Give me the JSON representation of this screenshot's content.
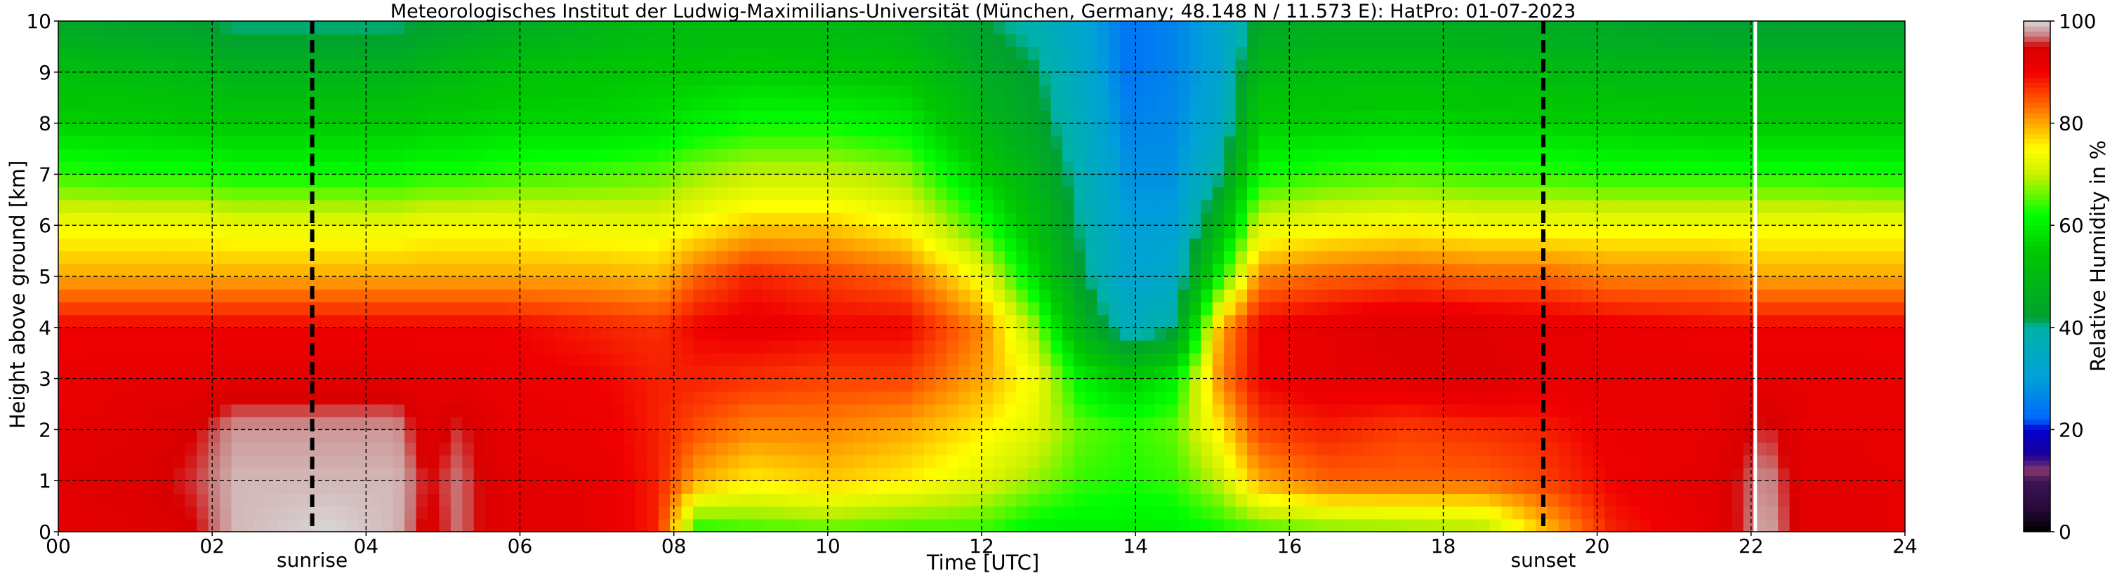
{
  "chart_data": {
    "type": "heatmap",
    "title": "Meteorologisches Institut der Ludwig-Maximilians-Universität (München, Germany; 48.148 N / 11.573 E):    HatPro: 01-07-2023",
    "xlabel": "Time [UTC]",
    "ylabel": "Height above ground [km]",
    "colorbar_label": "Relative Humidity in %",
    "xlim": [
      0,
      24
    ],
    "ylim": [
      0,
      10
    ],
    "clim": [
      0,
      100
    ],
    "x_ticks": [
      "00",
      "02",
      "04",
      "06",
      "08",
      "10",
      "12",
      "14",
      "16",
      "18",
      "20",
      "22",
      "24"
    ],
    "y_ticks": [
      "0",
      "1",
      "2",
      "3",
      "4",
      "5",
      "6",
      "7",
      "8",
      "9",
      "10"
    ],
    "colorbar_ticks": [
      "0",
      "20",
      "40",
      "60",
      "80",
      "100"
    ],
    "grid": true,
    "markers": [
      {
        "label": "sunrise",
        "x": 3.3
      },
      {
        "label": "sunset",
        "x": 19.3
      }
    ],
    "data_gaps": [
      22.05
    ],
    "colormap": [
      {
        "value": 0,
        "color": "#000000"
      },
      {
        "value": 5,
        "color": "#2a0a3a"
      },
      {
        "value": 10,
        "color": "#3d1458"
      },
      {
        "value": 12,
        "color": "#8a3a6a"
      },
      {
        "value": 15,
        "color": "#1a0099"
      },
      {
        "value": 20,
        "color": "#0000cc"
      },
      {
        "value": 22,
        "color": "#0066ff"
      },
      {
        "value": 30,
        "color": "#00a0d8"
      },
      {
        "value": 40,
        "color": "#00b2a8"
      },
      {
        "value": 42,
        "color": "#00a030"
      },
      {
        "value": 55,
        "color": "#00c800"
      },
      {
        "value": 62,
        "color": "#00ff00"
      },
      {
        "value": 70,
        "color": "#c8f000"
      },
      {
        "value": 75,
        "color": "#ffff00"
      },
      {
        "value": 80,
        "color": "#ffa800"
      },
      {
        "value": 85,
        "color": "#ff5000"
      },
      {
        "value": 90,
        "color": "#f00000"
      },
      {
        "value": 95,
        "color": "#d80000"
      },
      {
        "value": 97,
        "color": "#c87878"
      },
      {
        "value": 100,
        "color": "#d8d8d8"
      }
    ],
    "rh_profiles": [
      {
        "time": 0.0,
        "rh": [
          92,
          93,
          92,
          91,
          90,
          80,
          74,
          64,
          56,
          52,
          44
        ]
      },
      {
        "time": 1.0,
        "rh": [
          93,
          94,
          93,
          92,
          90,
          80,
          74,
          63,
          56,
          51,
          43
        ]
      },
      {
        "time": 1.8,
        "rh": [
          95,
          96,
          95,
          92,
          90,
          80,
          74,
          63,
          55,
          50,
          42
        ]
      },
      {
        "time": 2.3,
        "rh": [
          99,
          99,
          98,
          93,
          90,
          80,
          73,
          62,
          55,
          48,
          40
        ]
      },
      {
        "time": 3.5,
        "rh": [
          100,
          99,
          98,
          93,
          90,
          80,
          73,
          62,
          55,
          48,
          40
        ]
      },
      {
        "time": 4.4,
        "rh": [
          99,
          99,
          98,
          93,
          90,
          80,
          73,
          62,
          55,
          48,
          40
        ]
      },
      {
        "time": 4.8,
        "rh": [
          94,
          95,
          93,
          92,
          90,
          80,
          74,
          63,
          56,
          50,
          42
        ]
      },
      {
        "time": 5.2,
        "rh": [
          97,
          97,
          96,
          92,
          90,
          80,
          74,
          63,
          56,
          51,
          43
        ]
      },
      {
        "time": 5.8,
        "rh": [
          93,
          93,
          92,
          91,
          90,
          80,
          74,
          64,
          57,
          53,
          45
        ]
      },
      {
        "time": 7.0,
        "rh": [
          92,
          92,
          91,
          90,
          88,
          80,
          73,
          65,
          57,
          54,
          48
        ]
      },
      {
        "time": 7.8,
        "rh": [
          88,
          88,
          88,
          88,
          87,
          79,
          73,
          66,
          58,
          55,
          50
        ]
      },
      {
        "time": 8.3,
        "rh": [
          62,
          80,
          85,
          88,
          90,
          84,
          75,
          68,
          60,
          55,
          50
        ]
      },
      {
        "time": 9.0,
        "rh": [
          64,
          76,
          82,
          87,
          91,
          88,
          78,
          70,
          62,
          56,
          50
        ]
      },
      {
        "time": 10.0,
        "rh": [
          65,
          78,
          82,
          86,
          90,
          86,
          78,
          70,
          62,
          55,
          50
        ]
      },
      {
        "time": 11.0,
        "rh": [
          64,
          76,
          80,
          86,
          90,
          84,
          75,
          68,
          60,
          54,
          48
        ]
      },
      {
        "time": 12.0,
        "rh": [
          64,
          72,
          76,
          80,
          82,
          74,
          64,
          56,
          50,
          46,
          42
        ]
      },
      {
        "time": 12.7,
        "rh": [
          60,
          68,
          72,
          74,
          68,
          58,
          52,
          48,
          44,
          42,
          38
        ]
      },
      {
        "time": 13.3,
        "rh": [
          60,
          64,
          66,
          60,
          48,
          42,
          40,
          38,
          36,
          34,
          32
        ]
      },
      {
        "time": 13.9,
        "rh": [
          60,
          63,
          64,
          55,
          36,
          32,
          30,
          28,
          26,
          24,
          24
        ]
      },
      {
        "time": 14.5,
        "rh": [
          60,
          64,
          66,
          60,
          40,
          34,
          30,
          28,
          27,
          26,
          26
        ]
      },
      {
        "time": 15.1,
        "rh": [
          62,
          70,
          76,
          82,
          80,
          62,
          50,
          40,
          34,
          32,
          32
        ]
      },
      {
        "time": 15.6,
        "rh": [
          64,
          80,
          86,
          90,
          90,
          82,
          72,
          62,
          56,
          50,
          44
        ]
      },
      {
        "time": 16.5,
        "rh": [
          66,
          84,
          88,
          92,
          92,
          84,
          74,
          64,
          56,
          52,
          46
        ]
      },
      {
        "time": 17.5,
        "rh": [
          67,
          84,
          86,
          93,
          94,
          85,
          75,
          65,
          57,
          52,
          46
        ]
      },
      {
        "time": 18.5,
        "rh": [
          68,
          84,
          87,
          94,
          93,
          84,
          74,
          64,
          56,
          52,
          46
        ]
      },
      {
        "time": 19.3,
        "rh": [
          78,
          86,
          88,
          92,
          92,
          84,
          74,
          64,
          56,
          51,
          45
        ]
      },
      {
        "time": 20.2,
        "rh": [
          88,
          90,
          91,
          92,
          91,
          82,
          74,
          63,
          56,
          50,
          44
        ]
      },
      {
        "time": 21.5,
        "rh": [
          92,
          93,
          92,
          92,
          90,
          82,
          74,
          63,
          55,
          50,
          42
        ]
      },
      {
        "time": 22.2,
        "rh": [
          99,
          98,
          96,
          92,
          90,
          80,
          74,
          63,
          55,
          50,
          42
        ]
      },
      {
        "time": 22.7,
        "rh": [
          93,
          93,
          92,
          92,
          90,
          80,
          74,
          63,
          55,
          50,
          42
        ]
      },
      {
        "time": 24.0,
        "rh": [
          92,
          92,
          92,
          91,
          90,
          80,
          74,
          62,
          55,
          50,
          42
        ]
      }
    ]
  }
}
